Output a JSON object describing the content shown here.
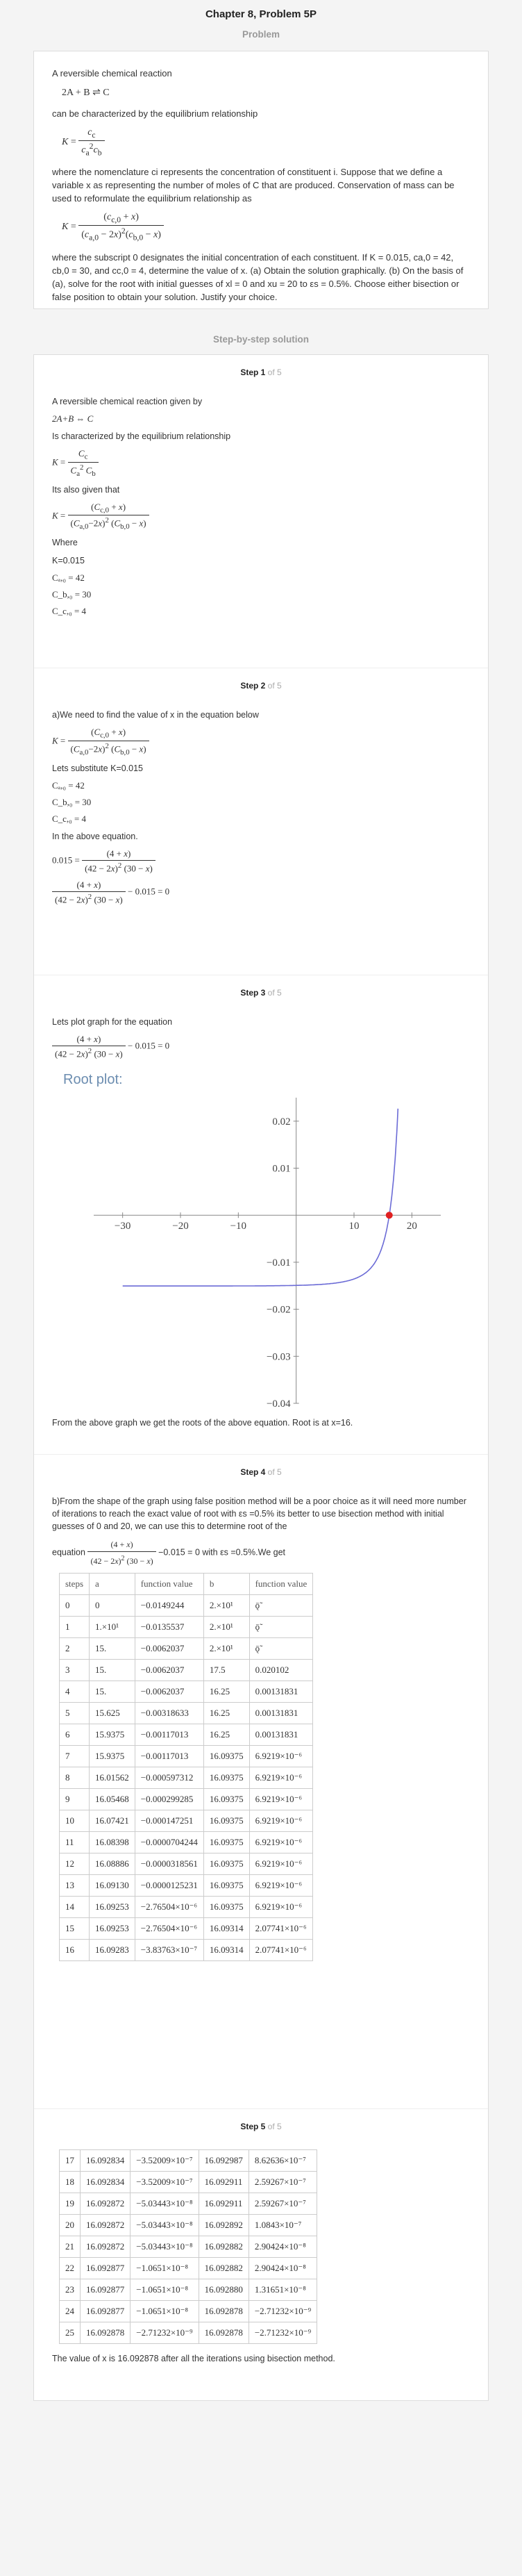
{
  "header": {
    "title": "Chapter 8, Problem 5P",
    "problem_label": "Problem",
    "solution_label": "Step-by-step solution"
  },
  "problem": {
    "intro": "A reversible chemical reaction",
    "reaction": "2A + B ⇌ C",
    "line2": "can be characterized by the equilibrium relationship",
    "line3": "where the nomenclature ci represents the concentration of constituent i. Suppose that we define a variable x as representing the number of moles of C that are produced. Conservation of mass can be used to reformulate the equilibrium relationship as",
    "line4": "where the subscript 0 designates the initial concentration of each constituent. If K = 0.015, ca,0 = 42, cb,0 = 30, and cc,0 = 4, determine the value of x. (a) Obtain the solution graphically. (b) On the basis of (a), solve for the root with initial guesses of xl = 0 and xu = 20 to εs = 0.5%. Choose either bisection or false position to obtain your solution. Justify your choice."
  },
  "steps": [
    {
      "n": "Step 1",
      "of": "of 5",
      "lines": [
        "A reversible chemical reaction given by",
        "Is characterized by the equilibrium relationship",
        "Its also given that",
        "Where",
        "K=0.015"
      ],
      "reaction": "2A+B ⇔ C",
      "vars": [
        "Cₐ,₀ = 42",
        "C_b,₀ = 30",
        "C_c,₀ = 4"
      ]
    },
    {
      "n": "Step 2",
      "of": "of 5",
      "lines": [
        "a)We need to find the value of x in the equation below",
        "Lets substitute K=0.015",
        "In the above equation."
      ],
      "vars": [
        "Cₐ,₀ = 42",
        "C_b,₀ = 30",
        "C_c,₀ = 4"
      ]
    },
    {
      "n": "Step 3",
      "of": "of 5",
      "lines": [
        "Lets plot graph for the equation",
        "From the above graph we get the roots of the above equation. Root is at x=16."
      ],
      "plot_title": "Root plot:"
    },
    {
      "n": "Step 4",
      "of": "of 5",
      "lines": [
        "b)From the shape of the graph using false position method will be a poor choice as it will need more number of iterations to reach the exact value of root with  εs =0.5% its better to use bisection method with initial guesses of 0 and 20, we can use this to determine root of the",
        "equation",
        "with  εs =0.5%.We get"
      ]
    },
    {
      "n": "Step 5",
      "of": "of 5",
      "lines": [
        "The value of x is 16.092878 after all the iterations using bisection method."
      ]
    }
  ],
  "chart_data": {
    "type": "line",
    "title": "Root plot:",
    "xlim": [
      -35,
      25
    ],
    "ylim": [
      -0.04,
      0.025
    ],
    "x_ticks": [
      "−30",
      "−20",
      "−10",
      "10",
      "20"
    ],
    "x_tick_values": [
      -30,
      -20,
      -10,
      10,
      20
    ],
    "y_ticks": [
      "0.02",
      "0.01",
      "−0.01",
      "−0.02",
      "−0.03",
      "−0.04"
    ],
    "y_tick_values": [
      0.02,
      0.01,
      -0.01,
      -0.02,
      -0.03,
      -0.04
    ],
    "root_x": 16.09,
    "function": "(4+x)/((42-2x)^2 (30-x)) - 0.015",
    "series_color": "#6b6bd6",
    "root_color": "#e02020"
  },
  "table1": {
    "headers": [
      "steps",
      "a",
      "function value",
      "b",
      "function value"
    ],
    "rows": [
      [
        "0",
        "0",
        "−0.0149244",
        "2.×10¹",
        "ǭ̃"
      ],
      [
        "1",
        "1.×10¹",
        "−0.0135537",
        "2.×10¹",
        "ǭ̃"
      ],
      [
        "2",
        "15.",
        "−0.0062037",
        "2.×10¹",
        "ǭ̃"
      ],
      [
        "3",
        "15.",
        "−0.0062037",
        "17.5",
        "0.020102"
      ],
      [
        "4",
        "15.",
        "−0.0062037",
        "16.25",
        "0.00131831"
      ],
      [
        "5",
        "15.625",
        "−0.00318633",
        "16.25",
        "0.00131831"
      ],
      [
        "6",
        "15.9375",
        "−0.00117013",
        "16.25",
        "0.00131831"
      ],
      [
        "7",
        "15.9375",
        "−0.00117013",
        "16.09375",
        "6.9219×10⁻⁶"
      ],
      [
        "8",
        "16.01562",
        "−0.000597312",
        "16.09375",
        "6.9219×10⁻⁶"
      ],
      [
        "9",
        "16.05468",
        "−0.000299285",
        "16.09375",
        "6.9219×10⁻⁶"
      ],
      [
        "10",
        "16.07421",
        "−0.000147251",
        "16.09375",
        "6.9219×10⁻⁶"
      ],
      [
        "11",
        "16.08398",
        "−0.0000704244",
        "16.09375",
        "6.9219×10⁻⁶"
      ],
      [
        "12",
        "16.08886",
        "−0.0000318561",
        "16.09375",
        "6.9219×10⁻⁶"
      ],
      [
        "13",
        "16.09130",
        "−0.0000125231",
        "16.09375",
        "6.9219×10⁻⁶"
      ],
      [
        "14",
        "16.09253",
        "−2.76504×10⁻⁶",
        "16.09375",
        "6.9219×10⁻⁶"
      ],
      [
        "15",
        "16.09253",
        "−2.76504×10⁻⁶",
        "16.09314",
        "2.07741×10⁻⁶"
      ],
      [
        "16",
        "16.09283",
        "−3.83763×10⁻⁷",
        "16.09314",
        "2.07741×10⁻⁶"
      ]
    ]
  },
  "table2": {
    "rows": [
      [
        "17",
        "16.092834",
        "−3.52009×10⁻⁷",
        "16.092987",
        "8.62636×10⁻⁷"
      ],
      [
        "18",
        "16.092834",
        "−3.52009×10⁻⁷",
        "16.092911",
        "2.59267×10⁻⁷"
      ],
      [
        "19",
        "16.092872",
        "−5.03443×10⁻⁸",
        "16.092911",
        "2.59267×10⁻⁷"
      ],
      [
        "20",
        "16.092872",
        "−5.03443×10⁻⁸",
        "16.092892",
        "1.0843×10⁻⁷"
      ],
      [
        "21",
        "16.092872",
        "−5.03443×10⁻⁸",
        "16.092882",
        "2.90424×10⁻⁸"
      ],
      [
        "22",
        "16.092877",
        "−1.0651×10⁻⁸",
        "16.092882",
        "2.90424×10⁻⁸"
      ],
      [
        "23",
        "16.092877",
        "−1.0651×10⁻⁸",
        "16.092880",
        "1.31651×10⁻⁸"
      ],
      [
        "24",
        "16.092877",
        "−1.0651×10⁻⁸",
        "16.092878",
        "−2.71232×10⁻⁹"
      ],
      [
        "25",
        "16.092878",
        "−2.71232×10⁻⁹",
        "16.092878",
        "−2.71232×10⁻⁹"
      ]
    ]
  }
}
